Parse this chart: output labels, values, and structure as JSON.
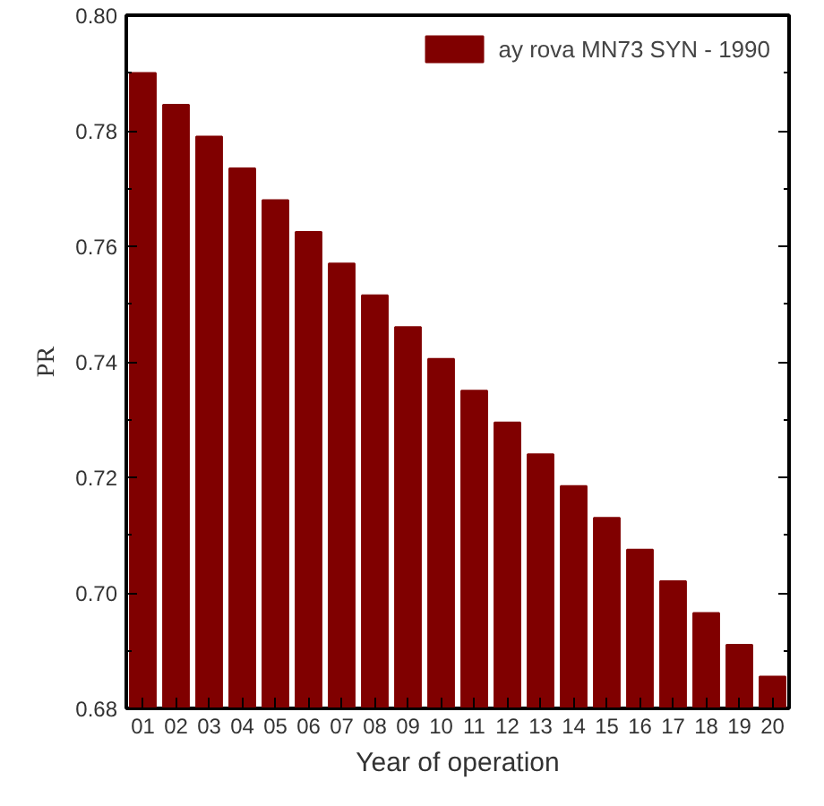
{
  "chart_data": {
    "type": "bar",
    "xlabel": "Year of operation",
    "ylabel": "PR",
    "categories": [
      "01",
      "02",
      "03",
      "04",
      "05",
      "06",
      "07",
      "08",
      "09",
      "10",
      "11",
      "12",
      "13",
      "14",
      "15",
      "16",
      "17",
      "18",
      "19",
      "20"
    ],
    "series": [
      {
        "name": "ay rova MN73 SYN - 1990",
        "color": "#800000",
        "values": [
          0.79,
          0.7845,
          0.779,
          0.7735,
          0.768,
          0.7625,
          0.757,
          0.7515,
          0.746,
          0.7405,
          0.735,
          0.7295,
          0.724,
          0.7185,
          0.713,
          0.7075,
          0.702,
          0.6965,
          0.691,
          0.6855
        ]
      }
    ],
    "ylim": [
      0.68,
      0.8
    ],
    "yticks": [
      0.68,
      {
        "value": 0.7,
        "label": "0.70"
      },
      0.72,
      0.74,
      0.76,
      0.78,
      {
        "value": 0.8,
        "label": "0.80"
      }
    ],
    "grid": false,
    "legend": "top right"
  }
}
